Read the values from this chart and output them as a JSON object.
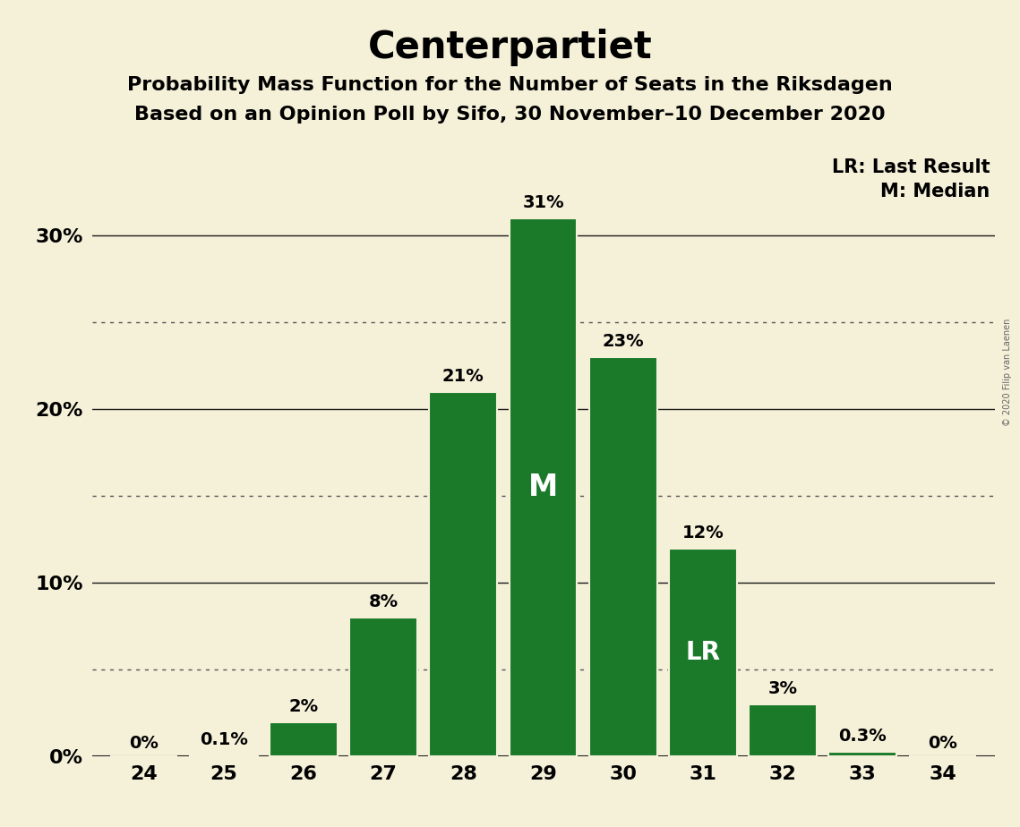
{
  "title": "Centerpartiet",
  "subtitle1": "Probability Mass Function for the Number of Seats in the Riksdagen",
  "subtitle2": "Based on an Opinion Poll by Sifo, 30 November–10 December 2020",
  "copyright": "© 2020 Filip van Laenen",
  "seats": [
    24,
    25,
    26,
    27,
    28,
    29,
    30,
    31,
    32,
    33,
    34
  ],
  "probabilities": [
    0.0,
    0.1,
    2.0,
    8.0,
    21.0,
    31.0,
    23.0,
    12.0,
    3.0,
    0.3,
    0.0
  ],
  "bar_labels": [
    "0%",
    "0.1%",
    "2%",
    "8%",
    "21%",
    "31%",
    "23%",
    "12%",
    "3%",
    "0.3%",
    "0%"
  ],
  "bar_color": "#1a7a2a",
  "background_color": "#f5f0d8",
  "median_seat": 29,
  "last_result_seat": 31,
  "median_label": "M",
  "last_result_label": "LR",
  "legend_lr": "LR: Last Result",
  "legend_m": "M: Median",
  "ylim": [
    0,
    35
  ],
  "solid_gridlines": [
    0,
    10,
    20,
    30
  ],
  "dotted_gridlines": [
    5,
    15,
    25
  ],
  "ytick_labels_pos": [
    0,
    10,
    20,
    30
  ],
  "ytick_labels": [
    "0%",
    "10%",
    "20%",
    "30%"
  ],
  "title_fontsize": 30,
  "subtitle_fontsize": 16,
  "label_fontsize": 14,
  "tick_fontsize": 16,
  "median_label_fontsize": 24,
  "lr_label_fontsize": 20,
  "legend_fontsize": 15
}
